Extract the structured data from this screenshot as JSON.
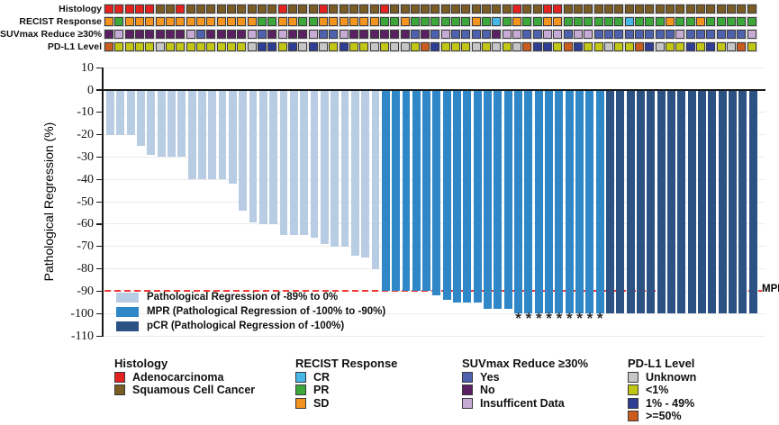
{
  "colors": {
    "bars": {
      "light": "#b8cce4",
      "mpr": "#2f87c8",
      "pcr": "#2c5284"
    },
    "histology": {
      "Adenocarcinoma": "#e42320",
      "Squamous Cell Cancer": "#7a5c24"
    },
    "recist": {
      "CR": "#45b8e8",
      "PR": "#3ca83a",
      "SD": "#f2941e"
    },
    "suvmax": {
      "Yes": "#4d61ae",
      "No": "#5a2162",
      "Insufficent Data": "#c5abd5"
    },
    "pdl1": {
      "Unknown": "#c6c6c6",
      "<1%": "#c2c614",
      "1% - 49%": "#2e3e95",
      ">=50%": "#cb5c1f"
    },
    "mpr_line": "#ee3b33",
    "axis": "#1a1a1a",
    "grid": "#ebebeb"
  },
  "annotation_tracks": {
    "labels": [
      "Histology",
      "RECIST Response",
      "SUVmax Reduce ≥30%",
      "PD-L1 Level"
    ],
    "keys": [
      "histology",
      "recist",
      "suvmax",
      "pdl1"
    ]
  },
  "chart_data": {
    "type": "bar",
    "title": "",
    "xlabel": "",
    "ylabel": "Pathological Regression (%)",
    "ylim": [
      -110,
      10
    ],
    "yticks": [
      10,
      0,
      -10,
      -20,
      -30,
      -40,
      -50,
      -60,
      -70,
      -80,
      -90,
      -100,
      -110
    ],
    "grid": true,
    "n_patients": 64,
    "regression": [
      -20,
      -20,
      -20,
      -25,
      -29,
      -30,
      -30,
      -30,
      -40,
      -40,
      -40,
      -40,
      -42,
      -54,
      -59,
      -60,
      -60,
      -65,
      -65,
      -65,
      -66,
      -69,
      -70,
      -70,
      -74,
      -75,
      -80,
      -90,
      -90,
      -90,
      -90,
      -90,
      -92,
      -94,
      -95,
      -95,
      -95,
      -98,
      -98,
      -98,
      -100,
      -100,
      -100,
      -100,
      -100,
      -100,
      -100,
      -100,
      -100,
      -100,
      -100,
      -100,
      -100,
      -100,
      -100,
      -100,
      -100,
      -100,
      -100,
      -100,
      -100,
      -100,
      -100,
      -100
    ],
    "groups": {
      "light": [
        1,
        27
      ],
      "mpr": [
        28,
        49
      ],
      "pcr": [
        50,
        64
      ]
    },
    "asterisk_columns": [
      41,
      42,
      43,
      44,
      45,
      46,
      47,
      48,
      49
    ],
    "mpr_line": {
      "value": -90,
      "label": "MPR"
    },
    "tracks": {
      "histology": {
        "code_labels": {
          "A": "Adenocarcinoma",
          "S": "Squamous Cell Cancer"
        },
        "values": [
          "A",
          "A",
          "A",
          "A",
          "A",
          "S",
          "S",
          "A",
          "S",
          "S",
          "S",
          "S",
          "S",
          "S",
          "S",
          "S",
          "S",
          "A",
          "S",
          "S",
          "S",
          "A",
          "S",
          "S",
          "S",
          "S",
          "S",
          "A",
          "S",
          "S",
          "S",
          "S",
          "S",
          "S",
          "S",
          "S",
          "S",
          "S",
          "S",
          "S",
          "A",
          "S",
          "S",
          "A",
          "A",
          "S",
          "S",
          "S",
          "S",
          "S",
          "S",
          "S",
          "S",
          "S",
          "S",
          "S",
          "S",
          "S",
          "S",
          "S",
          "S",
          "S",
          "S",
          "S"
        ]
      },
      "recist": {
        "code_labels": {
          "CR": "CR",
          "PR": "PR",
          "SD": "SD"
        },
        "values": [
          "SD",
          "PR",
          "SD",
          "SD",
          "SD",
          "SD",
          "SD",
          "SD",
          "SD",
          "SD",
          "SD",
          "SD",
          "SD",
          "SD",
          "SD",
          "PR",
          "PR",
          "SD",
          "SD",
          "PR",
          "PR",
          "SD",
          "SD",
          "SD",
          "SD",
          "SD",
          "SD",
          "PR",
          "PR",
          "SD",
          "PR",
          "PR",
          "PR",
          "PR",
          "PR",
          "PR",
          "SD",
          "PR",
          "CR",
          "PR",
          "SD",
          "PR",
          "PR",
          "SD",
          "SD",
          "PR",
          "PR",
          "PR",
          "PR",
          "PR",
          "PR",
          "CR",
          "PR",
          "PR",
          "PR",
          "SD",
          "PR",
          "PR",
          "SD",
          "PR",
          "PR",
          "PR",
          "PR",
          "PR"
        ]
      },
      "suvmax": {
        "code_labels": {
          "Y": "Yes",
          "N": "No",
          "I": "Insufficent Data"
        },
        "values": [
          "N",
          "I",
          "N",
          "N",
          "N",
          "N",
          "N",
          "N",
          "I",
          "Y",
          "N",
          "N",
          "N",
          "N",
          "I",
          "Y",
          "N",
          "I",
          "N",
          "N",
          "I",
          "Y",
          "Y",
          "I",
          "N",
          "N",
          "N",
          "N",
          "N",
          "N",
          "Y",
          "N",
          "Y",
          "I",
          "Y",
          "Y",
          "Y",
          "Y",
          "N",
          "I",
          "I",
          "Y",
          "Y",
          "I",
          "I",
          "Y",
          "I",
          "I",
          "Y",
          "Y",
          "Y",
          "Y",
          "Y",
          "Y",
          "Y",
          "Y",
          "I",
          "Y",
          "Y",
          "Y",
          "Y",
          "Y",
          "Y",
          "I"
        ]
      },
      "pdl1": {
        "code_labels": {
          "U": "Unknown",
          "L": "<1%",
          "M": "1% - 49%",
          "H": ">=50%"
        },
        "values": [
          "H",
          "L",
          "L",
          "L",
          "L",
          "U",
          "L",
          "L",
          "L",
          "L",
          "L",
          "L",
          "L",
          "L",
          "U",
          "M",
          "M",
          "L",
          "M",
          "U",
          "M",
          "U",
          "L",
          "M",
          "L",
          "L",
          "U",
          "L",
          "U",
          "U",
          "L",
          "H",
          "M",
          "L",
          "L",
          "L",
          "U",
          "L",
          "U",
          "L",
          "U",
          "H",
          "M",
          "M",
          "L",
          "H",
          "M",
          "L",
          "L",
          "U",
          "L",
          "L",
          "H",
          "M",
          "U",
          "L",
          "L",
          "M",
          "L",
          "M",
          "L",
          "U",
          "H",
          "L"
        ]
      }
    }
  },
  "chart_legend": [
    {
      "label": "Pathological Regression of -89% to 0%",
      "group": "light"
    },
    {
      "label": "MPR (Pathological Regression of -100% to -90%)",
      "group": "mpr"
    },
    {
      "label": "pCR (Pathological Regression of -100%)",
      "group": "pcr"
    }
  ],
  "bottom_legends": [
    {
      "title": "Histology",
      "color_key": "histology",
      "items": [
        "Adenocarcinoma",
        "Squamous Cell Cancer"
      ]
    },
    {
      "title": "RECIST Response",
      "color_key": "recist",
      "items": [
        "CR",
        "PR",
        "SD"
      ]
    },
    {
      "title": "SUVmax Reduce ≥30%",
      "color_key": "suvmax",
      "items": [
        "Yes",
        "No",
        "Insufficent Data"
      ]
    },
    {
      "title": "PD-L1 Level",
      "color_key": "pdl1",
      "items": [
        "Unknown",
        "<1%",
        "1% - 49%",
        ">=50%"
      ]
    }
  ]
}
